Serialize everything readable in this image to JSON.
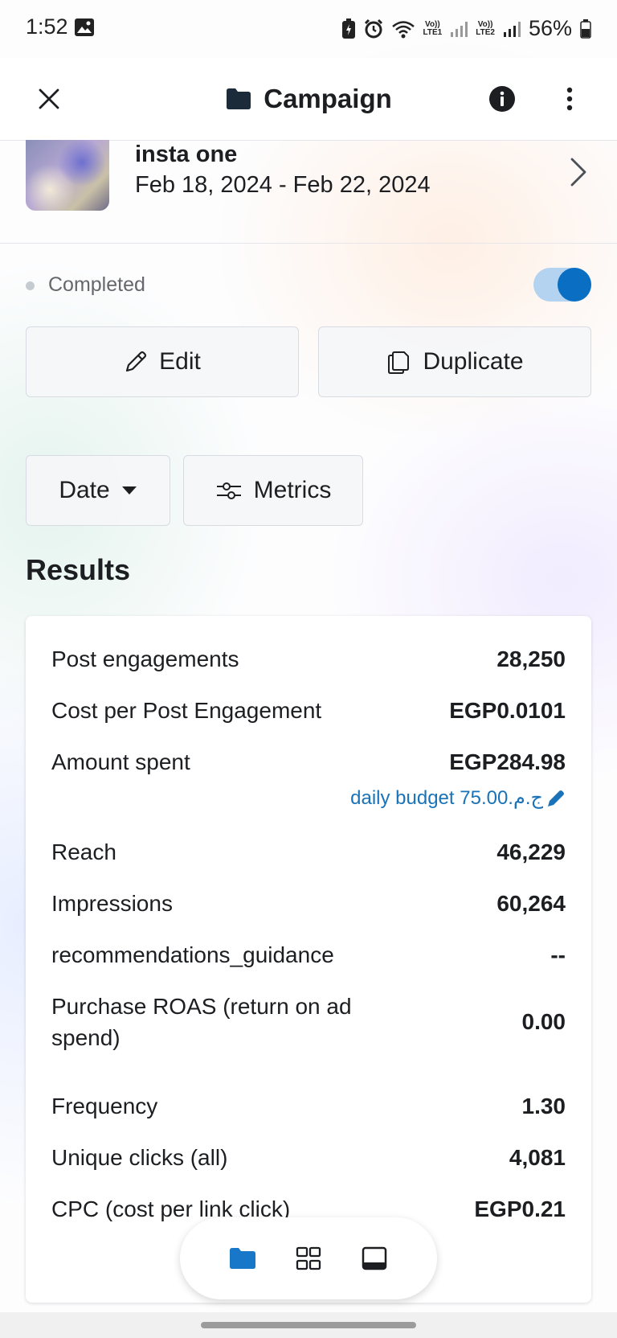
{
  "status_bar": {
    "time": "1:52",
    "sim1_line1": "Vo))",
    "sim1_line2": "LTE1",
    "sim2_line1": "Vo))",
    "sim2_line2": "LTE2",
    "battery": "56%"
  },
  "header": {
    "title": "Campaign",
    "icons": [
      "close-icon",
      "folder-icon",
      "info-icon",
      "more-vertical-icon"
    ]
  },
  "campaign": {
    "name": "insta one",
    "dates": "Feb 18, 2024 - Feb 22, 2024",
    "status": "Completed",
    "active_toggle": true
  },
  "actions": {
    "edit_label": "Edit",
    "duplicate_label": "Duplicate"
  },
  "filters": {
    "date_label": "Date",
    "metrics_label": "Metrics"
  },
  "results": {
    "title": "Results",
    "budget_note": "daily budget 75.00.ج.م",
    "rows": [
      {
        "label": "Post engagements",
        "value": "28,250"
      },
      {
        "label": "Cost per Post Engagement",
        "value": "EGP0.0101"
      },
      {
        "label": "Amount spent",
        "value": "EGP284.98"
      },
      {
        "label": "Reach",
        "value": "46,229"
      },
      {
        "label": "Impressions",
        "value": "60,264"
      },
      {
        "label": "recommendations_guidance",
        "value": "--"
      },
      {
        "label": "Purchase ROAS (return on ad spend)",
        "value": "0.00"
      },
      {
        "label": "Frequency",
        "value": "1.30"
      },
      {
        "label": "Unique clicks (all)",
        "value": "4,081"
      },
      {
        "label": "CPC (cost per link click)",
        "value": "EGP0.21"
      }
    ]
  },
  "bottom_nav": {
    "items": [
      "folder-icon",
      "grid-icon",
      "tablet-icon"
    ],
    "active_color": "#1877c9"
  },
  "colors": {
    "accent": "#0a6fc2",
    "link": "#1a73b8",
    "text": "#1c1e21",
    "muted": "#65676b"
  }
}
